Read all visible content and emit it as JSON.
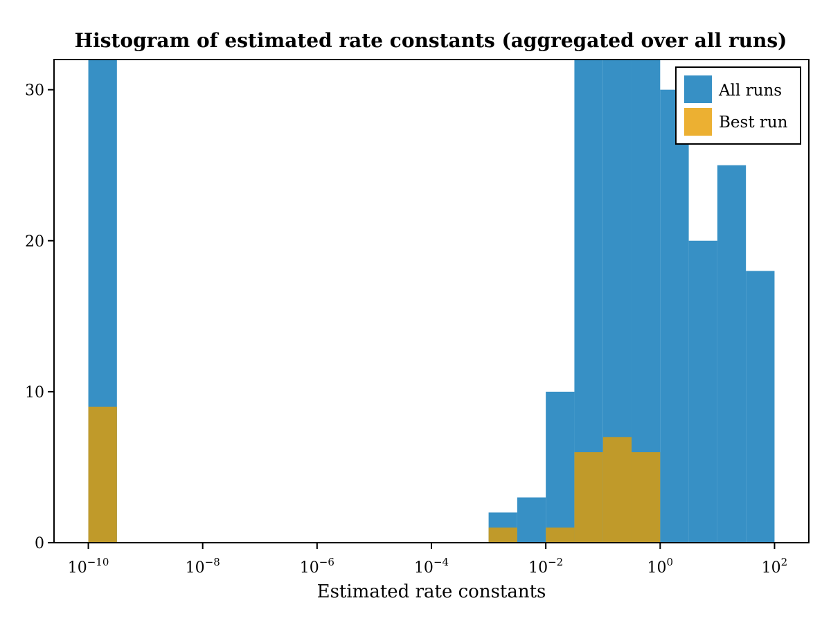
{
  "chart_data": {
    "type": "bar",
    "title": "Histogram of estimated rate constants (aggregated over all runs)",
    "xlabel": "Estimated rate constants",
    "ylabel": "",
    "x_scale": "log10",
    "xlim_exponent": [
      -10.6,
      2.6
    ],
    "ylim": [
      0,
      32
    ],
    "x_ticks": [
      {
        "base": "10",
        "exp": "−10",
        "value": -10
      },
      {
        "base": "10",
        "exp": "−8",
        "value": -8
      },
      {
        "base": "10",
        "exp": "−6",
        "value": -6
      },
      {
        "base": "10",
        "exp": "−4",
        "value": -4
      },
      {
        "base": "10",
        "exp": "−2",
        "value": -2
      },
      {
        "base": "10",
        "exp": "0",
        "value": 0
      },
      {
        "base": "10",
        "exp": "2",
        "value": 2
      }
    ],
    "y_ticks": [
      0,
      10,
      20,
      30
    ],
    "grid": false,
    "legend_position": "top-right",
    "bin_edges_exponent": [
      -10,
      -9.5,
      -3,
      -2.5,
      -2,
      -1.5,
      -1,
      -0.5,
      0,
      0.5,
      1,
      1.5,
      2
    ],
    "series": [
      {
        "name": "All runs",
        "color": "#3790c5",
        "bins": [
          {
            "from": -10,
            "to": -9.5,
            "count": 32
          },
          {
            "from": -3,
            "to": -2.5,
            "count": 2
          },
          {
            "from": -2.5,
            "to": -2,
            "count": 3
          },
          {
            "from": -2,
            "to": -1.5,
            "count": 10
          },
          {
            "from": -1.5,
            "to": -1,
            "count": 32
          },
          {
            "from": -1,
            "to": -0.5,
            "count": 32
          },
          {
            "from": -0.5,
            "to": 0,
            "count": 32
          },
          {
            "from": 0,
            "to": 0.5,
            "count": 30
          },
          {
            "from": 0.5,
            "to": 1,
            "count": 20
          },
          {
            "from": 1,
            "to": 1.5,
            "count": 25
          },
          {
            "from": 1.5,
            "to": 2,
            "count": 18
          }
        ]
      },
      {
        "name": "Best run",
        "color": "#c09a2a",
        "bins": [
          {
            "from": -10,
            "to": -9.5,
            "count": 9
          },
          {
            "from": -3,
            "to": -2.5,
            "count": 1
          },
          {
            "from": -2,
            "to": -1.5,
            "count": 1
          },
          {
            "from": -1.5,
            "to": -1,
            "count": 6
          },
          {
            "from": -1,
            "to": -0.5,
            "count": 7
          },
          {
            "from": -0.5,
            "to": 0,
            "count": 6
          }
        ]
      }
    ],
    "legend_best_color": "#ecb032"
  }
}
